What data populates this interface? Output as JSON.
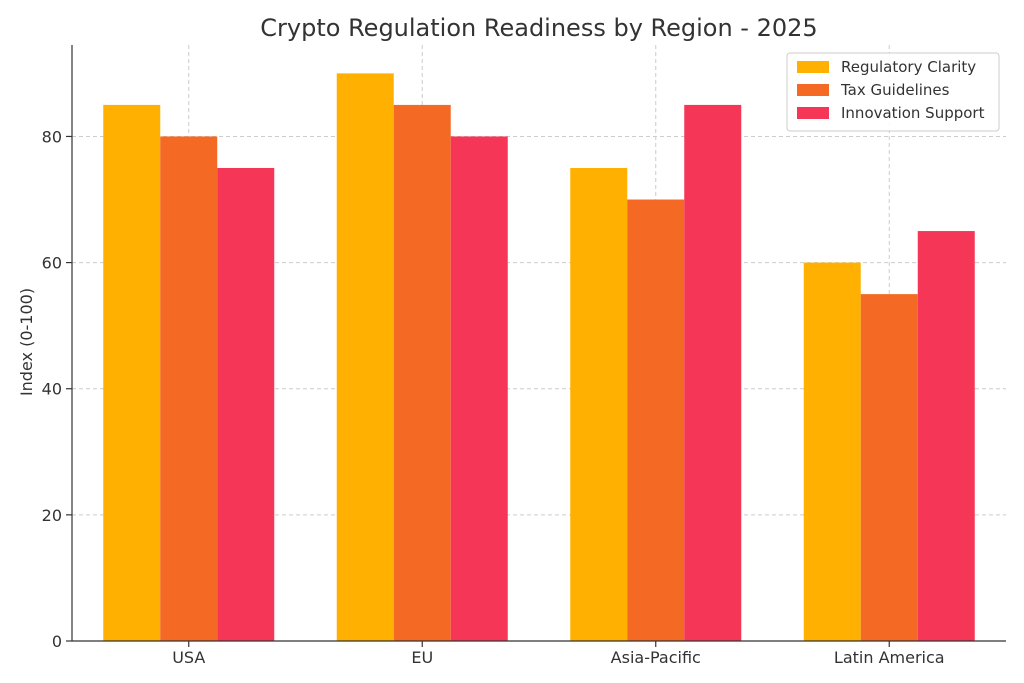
{
  "chart_data": {
    "type": "bar",
    "title": "Crypto Regulation Readiness by Region - 2025",
    "xlabel": "",
    "ylabel": "Index (0-100)",
    "categories": [
      "USA",
      "EU",
      "Asia-Pacific",
      "Latin America"
    ],
    "series": [
      {
        "name": "Regulatory Clarity",
        "color": "#FFB000",
        "values": [
          85,
          90,
          75,
          60
        ]
      },
      {
        "name": "Tax Guidelines",
        "color": "#F46A25",
        "values": [
          80,
          85,
          70,
          55
        ]
      },
      {
        "name": "Innovation Support",
        "color": "#F53656",
        "values": [
          75,
          80,
          85,
          65
        ]
      }
    ],
    "ylim": [
      0,
      94.5
    ],
    "yticks": [
      "0",
      "20",
      "40",
      "60",
      "80"
    ],
    "grid": true,
    "legend_position": "top-right"
  }
}
